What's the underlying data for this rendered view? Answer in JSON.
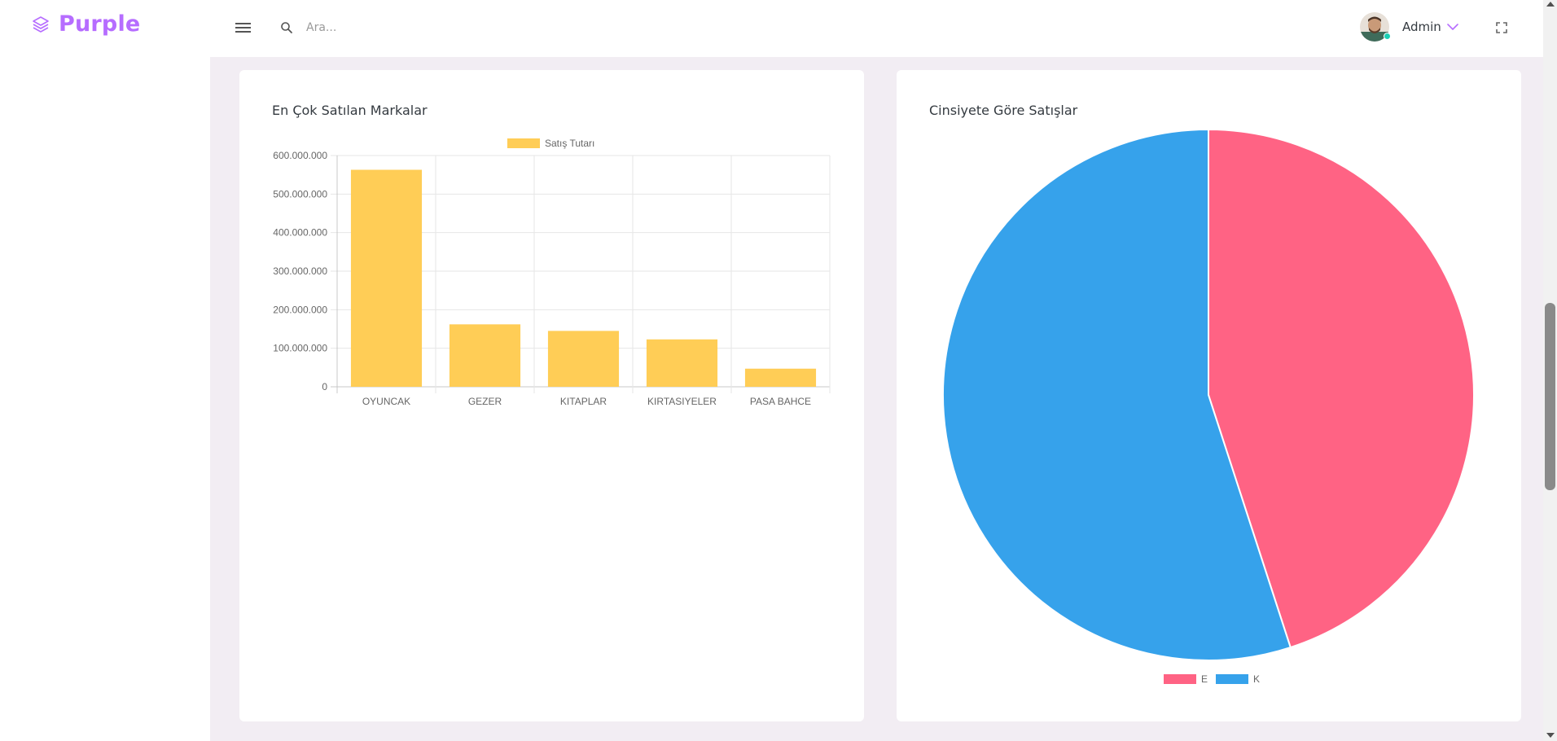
{
  "brand": {
    "name": "Purple",
    "icon": "layers-icon",
    "color": "#b66dff"
  },
  "search": {
    "placeholder": "Ara..."
  },
  "profile": {
    "name": "Admin",
    "status_color": "#1bcfb4"
  },
  "cards": {
    "bar_title": "En Çok Satılan Markalar",
    "pie_title": "Cinsiyete Göre Satışlar"
  },
  "chart_data": [
    {
      "type": "bar",
      "title": "En Çok Satılan Markalar",
      "categories": [
        "OYUNCAK",
        "GEZER",
        "KITAPLAR",
        "KIRTASIYELER",
        "PASA BAHCE"
      ],
      "series": [
        {
          "name": "Satış Tutarı",
          "values": [
            563000000,
            162000000,
            145000000,
            123000000,
            47000000
          ],
          "color": "#ffcd56"
        }
      ],
      "ylim": [
        0,
        600000000
      ],
      "yticks": [
        0,
        100000000,
        200000000,
        300000000,
        400000000,
        500000000,
        600000000
      ],
      "ytick_labels": [
        "0",
        "100.000.000",
        "200.000.000",
        "300.000.000",
        "400.000.000",
        "500.000.000",
        "600.000.000"
      ],
      "grid": true,
      "legend": "top"
    },
    {
      "type": "pie",
      "title": "Cinsiyete Göre Satışlar",
      "labels": [
        "E",
        "K"
      ],
      "values": [
        45,
        55
      ],
      "colors": [
        "#ff6384",
        "#36a2eb"
      ],
      "legend": "bottom"
    }
  ]
}
